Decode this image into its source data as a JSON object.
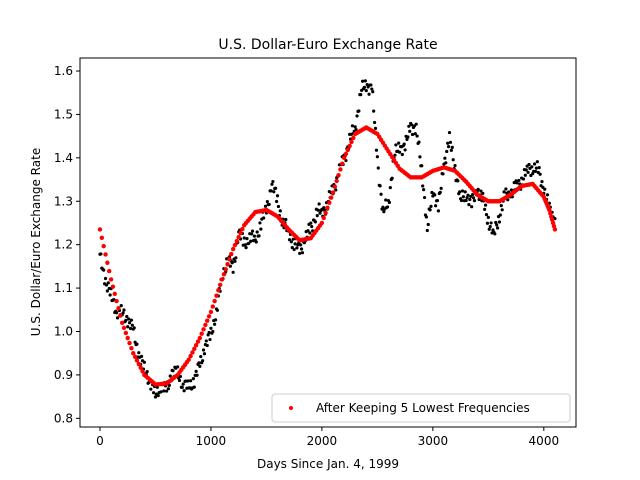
{
  "chart_data": {
    "type": "scatter",
    "title": "U.S. Dollar-Euro Exchange Rate",
    "xlabel": "Days Since Jan. 4, 1999",
    "ylabel": "U.S. Dollar/Euro Exchange Rate",
    "xlim": [
      -180,
      4290
    ],
    "ylim": [
      0.78,
      1.63
    ],
    "xticks": [
      0,
      1000,
      2000,
      3000,
      4000
    ],
    "xtick_labels": [
      "0",
      "1000",
      "2000",
      "3000",
      "4000"
    ],
    "yticks": [
      0.8,
      0.9,
      1.0,
      1.1,
      1.2,
      1.3,
      1.4,
      1.5,
      1.6
    ],
    "ytick_labels": [
      "0.8",
      "0.9",
      "1.0",
      "1.1",
      "1.2",
      "1.3",
      "1.4",
      "1.5",
      "1.6"
    ],
    "grid": false,
    "legend": {
      "position": "lower-right",
      "entries": [
        "After Keeping 5 Lowest Frequencies"
      ]
    },
    "series": [
      {
        "color": "#000000",
        "marker": "dot",
        "points": [
          [
            0,
            1.17
          ],
          [
            50,
            1.12
          ],
          [
            100,
            1.08
          ],
          [
            150,
            1.05
          ],
          [
            200,
            1.04
          ],
          [
            250,
            1.03
          ],
          [
            300,
            1.0
          ],
          [
            350,
            0.95
          ],
          [
            400,
            0.91
          ],
          [
            450,
            0.89
          ],
          [
            500,
            0.85
          ],
          [
            550,
            0.88
          ],
          [
            600,
            0.86
          ],
          [
            650,
            0.91
          ],
          [
            700,
            0.9
          ],
          [
            750,
            0.88
          ],
          [
            800,
            0.87
          ],
          [
            850,
            0.89
          ],
          [
            900,
            0.92
          ],
          [
            950,
            0.97
          ],
          [
            1000,
            0.99
          ],
          [
            1050,
            1.05
          ],
          [
            1100,
            1.12
          ],
          [
            1150,
            1.17
          ],
          [
            1200,
            1.14
          ],
          [
            1250,
            1.23
          ],
          [
            1300,
            1.2
          ],
          [
            1350,
            1.22
          ],
          [
            1400,
            1.21
          ],
          [
            1450,
            1.25
          ],
          [
            1500,
            1.28
          ],
          [
            1550,
            1.34
          ],
          [
            1600,
            1.3
          ],
          [
            1650,
            1.25
          ],
          [
            1700,
            1.23
          ],
          [
            1750,
            1.2
          ],
          [
            1800,
            1.19
          ],
          [
            1850,
            1.21
          ],
          [
            1900,
            1.24
          ],
          [
            1950,
            1.27
          ],
          [
            2000,
            1.28
          ],
          [
            2050,
            1.29
          ],
          [
            2100,
            1.33
          ],
          [
            2150,
            1.36
          ],
          [
            2200,
            1.4
          ],
          [
            2250,
            1.44
          ],
          [
            2300,
            1.47
          ],
          [
            2350,
            1.55
          ],
          [
            2400,
            1.57
          ],
          [
            2450,
            1.56
          ],
          [
            2500,
            1.4
          ],
          [
            2550,
            1.27
          ],
          [
            2600,
            1.3
          ],
          [
            2650,
            1.4
          ],
          [
            2700,
            1.43
          ],
          [
            2750,
            1.42
          ],
          [
            2800,
            1.48
          ],
          [
            2850,
            1.46
          ],
          [
            2900,
            1.38
          ],
          [
            2950,
            1.23
          ],
          [
            3000,
            1.33
          ],
          [
            3050,
            1.28
          ],
          [
            3100,
            1.39
          ],
          [
            3150,
            1.44
          ],
          [
            3200,
            1.38
          ],
          [
            3250,
            1.3
          ],
          [
            3300,
            1.32
          ],
          [
            3350,
            1.29
          ],
          [
            3400,
            1.33
          ],
          [
            3450,
            1.3
          ],
          [
            3500,
            1.26
          ],
          [
            3550,
            1.22
          ],
          [
            3600,
            1.27
          ],
          [
            3650,
            1.31
          ],
          [
            3700,
            1.32
          ],
          [
            3750,
            1.33
          ],
          [
            3800,
            1.35
          ],
          [
            3850,
            1.37
          ],
          [
            3900,
            1.38
          ],
          [
            3950,
            1.37
          ],
          [
            4000,
            1.33
          ],
          [
            4050,
            1.28
          ],
          [
            4100,
            1.26
          ]
        ]
      },
      {
        "name": "After Keeping 5 Lowest Frequencies",
        "color": "#ff0000",
        "marker": "dot",
        "points": [
          [
            0,
            1.235
          ],
          [
            100,
            1.12
          ],
          [
            200,
            1.02
          ],
          [
            300,
            0.95
          ],
          [
            400,
            0.9
          ],
          [
            500,
            0.878
          ],
          [
            600,
            0.88
          ],
          [
            700,
            0.9
          ],
          [
            800,
            0.935
          ],
          [
            900,
            0.985
          ],
          [
            1000,
            1.045
          ],
          [
            1100,
            1.12
          ],
          [
            1200,
            1.19
          ],
          [
            1300,
            1.245
          ],
          [
            1400,
            1.275
          ],
          [
            1500,
            1.28
          ],
          [
            1600,
            1.265
          ],
          [
            1700,
            1.235
          ],
          [
            1800,
            1.21
          ],
          [
            1900,
            1.215
          ],
          [
            2000,
            1.25
          ],
          [
            2100,
            1.32
          ],
          [
            2200,
            1.4
          ],
          [
            2300,
            1.455
          ],
          [
            2400,
            1.47
          ],
          [
            2500,
            1.455
          ],
          [
            2600,
            1.415
          ],
          [
            2700,
            1.375
          ],
          [
            2800,
            1.355
          ],
          [
            2900,
            1.355
          ],
          [
            3000,
            1.37
          ],
          [
            3100,
            1.378
          ],
          [
            3200,
            1.37
          ],
          [
            3300,
            1.345
          ],
          [
            3400,
            1.315
          ],
          [
            3500,
            1.3
          ],
          [
            3600,
            1.3
          ],
          [
            3700,
            1.315
          ],
          [
            3800,
            1.335
          ],
          [
            3900,
            1.34
          ],
          [
            4000,
            1.31
          ],
          [
            4050,
            1.28
          ],
          [
            4100,
            1.235
          ]
        ]
      }
    ]
  }
}
